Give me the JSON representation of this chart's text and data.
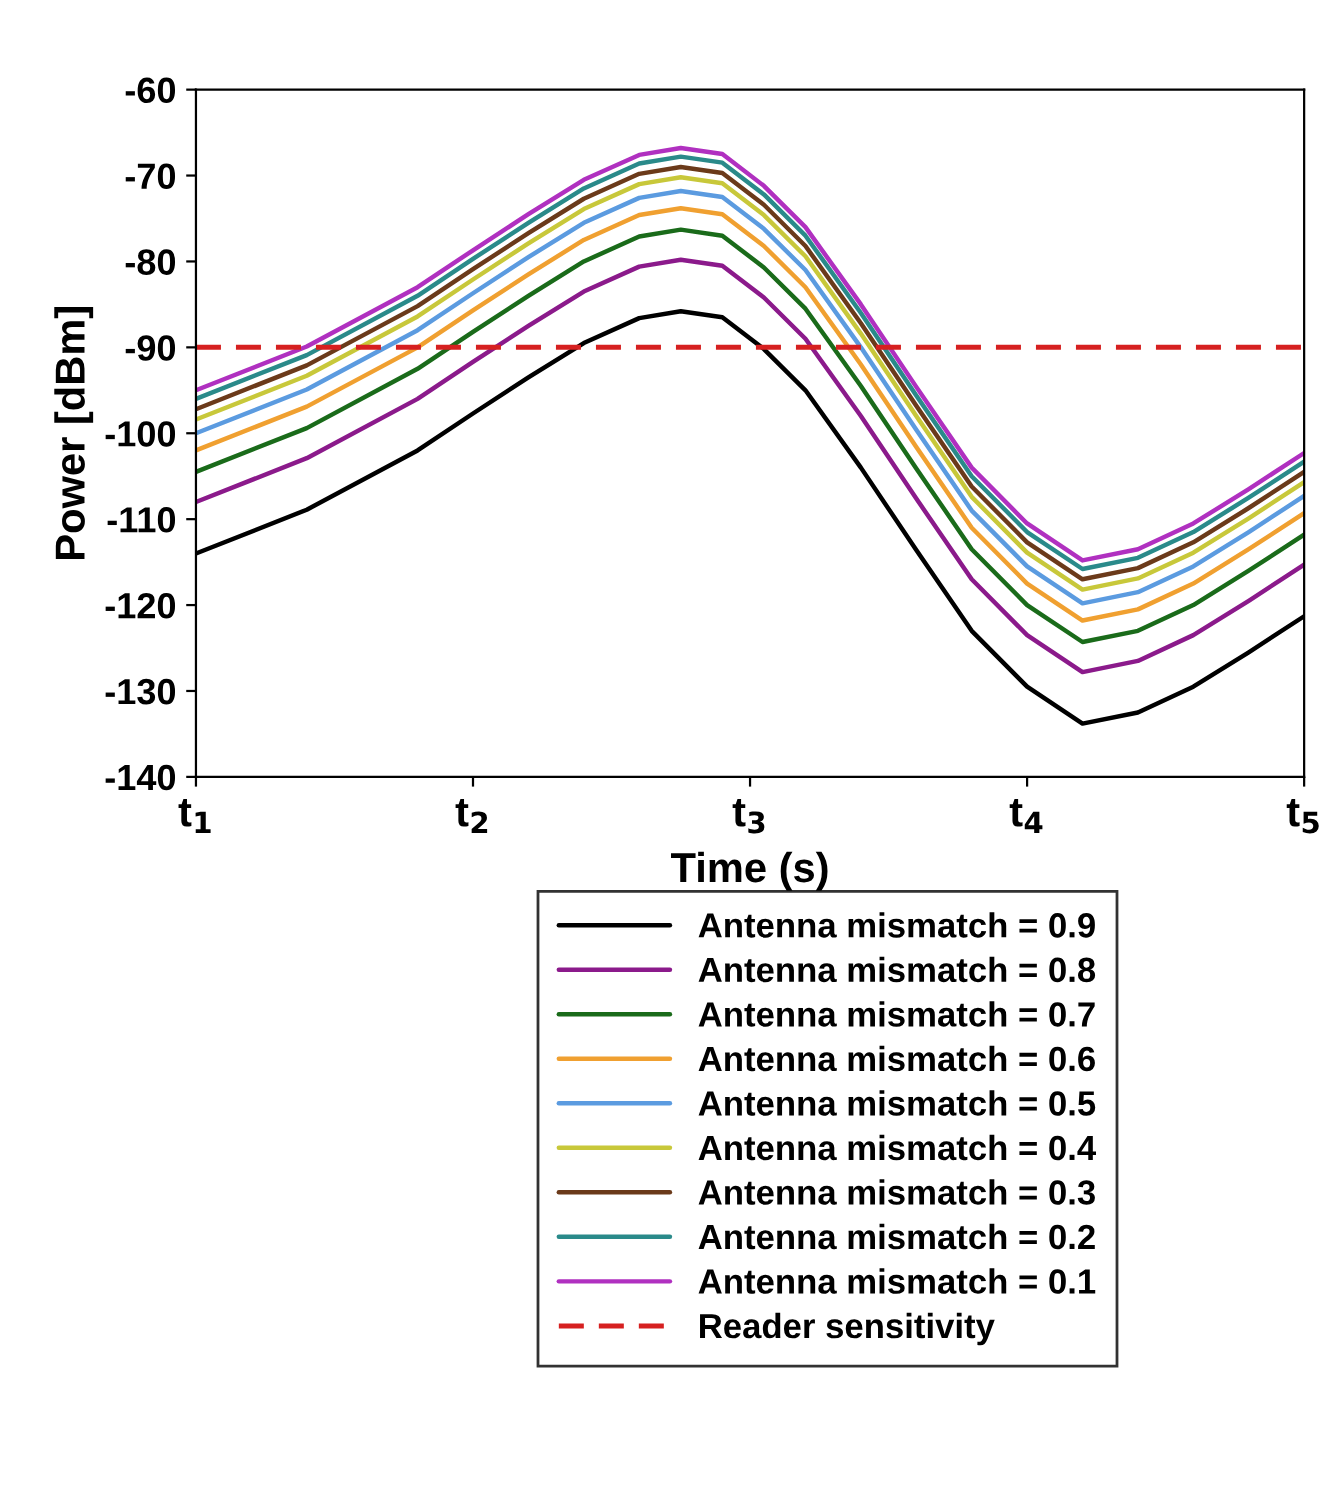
{
  "chart_data": {
    "type": "line",
    "xlabel": "Time (s)",
    "ylabel": "Power [dBm]",
    "x": [
      1,
      1.4,
      1.8,
      2.0,
      2.2,
      2.4,
      2.6,
      2.75,
      2.9,
      3.05,
      3.2,
      3.4,
      3.6,
      3.8,
      4.0,
      4.2,
      4.4,
      4.6,
      4.8,
      5.0
    ],
    "xlim": [
      1,
      5
    ],
    "xticks": [
      {
        "value": 1,
        "label": "t$_{1}$"
      },
      {
        "value": 2,
        "label": "t$_{2}$"
      },
      {
        "value": 3,
        "label": "t$_{3}$"
      },
      {
        "value": 4,
        "label": "t$_{4}$"
      },
      {
        "value": 5,
        "label": "t$_{5}$"
      }
    ],
    "ylim": [
      -140,
      -60
    ],
    "yticks": [
      -140,
      -130,
      -120,
      -110,
      -100,
      -90,
      -80,
      -70,
      -60
    ],
    "grid": false,
    "legend": "bottom",
    "marker": "none",
    "line_style": "solid",
    "series": [
      {
        "name": "Antenna mismatch = 0.9",
        "color": "#000000",
        "values": [
          -114,
          -108.9,
          -102,
          -97.7,
          -93.5,
          -89.5,
          -86.6,
          -85.8,
          -86.5,
          -90.2,
          -95,
          -104,
          -113.6,
          -123,
          -129.5,
          -133.8,
          -132.5,
          -129.5,
          -125.5,
          -121.3
        ]
      },
      {
        "name": "Antenna mismatch = 0.8",
        "color": "#8b1a8b",
        "values": [
          -108,
          -102.9,
          -96,
          -91.7,
          -87.5,
          -83.5,
          -80.6,
          -79.8,
          -80.5,
          -84.2,
          -89,
          -98,
          -107.6,
          -117,
          -123.5,
          -127.8,
          -126.5,
          -123.5,
          -119.5,
          -115.3
        ]
      },
      {
        "name": "Antenna mismatch = 0.7",
        "color": "#1a6b1a",
        "values": [
          -104.5,
          -99.4,
          -92.5,
          -88.2,
          -84,
          -80,
          -77.1,
          -76.3,
          -77,
          -80.7,
          -85.5,
          -94.5,
          -104.1,
          -113.5,
          -120,
          -124.3,
          -123,
          -120,
          -116,
          -111.8
        ]
      },
      {
        "name": "Antenna mismatch = 0.6",
        "color": "#f0a030",
        "values": [
          -102,
          -96.9,
          -90,
          -85.7,
          -81.5,
          -77.5,
          -74.6,
          -73.8,
          -74.5,
          -78.2,
          -83,
          -92,
          -101.6,
          -111,
          -117.5,
          -121.8,
          -120.5,
          -117.5,
          -113.5,
          -109.3
        ]
      },
      {
        "name": "Antenna mismatch = 0.5",
        "color": "#5b9be0",
        "values": [
          -100,
          -94.9,
          -88,
          -83.7,
          -79.5,
          -75.5,
          -72.6,
          -71.8,
          -72.5,
          -76.2,
          -81,
          -90,
          -99.6,
          -109,
          -115.5,
          -119.8,
          -118.5,
          -115.5,
          -111.5,
          -107.3
        ]
      },
      {
        "name": "Antenna mismatch = 0.4",
        "color": "#c8c83a",
        "values": [
          -98.4,
          -93.3,
          -86.4,
          -82.1,
          -77.9,
          -73.9,
          -71,
          -70.2,
          -70.9,
          -74.6,
          -79.4,
          -88.4,
          -98,
          -107.4,
          -113.9,
          -118.2,
          -116.9,
          -113.9,
          -109.9,
          -105.7
        ]
      },
      {
        "name": "Antenna mismatch = 0.3",
        "color": "#6b3a1a",
        "values": [
          -97.2,
          -92.1,
          -85.2,
          -80.9,
          -76.7,
          -72.7,
          -69.8,
          -69,
          -69.7,
          -73.4,
          -78.2,
          -87.2,
          -96.8,
          -106.2,
          -112.7,
          -117,
          -115.7,
          -112.7,
          -108.7,
          -104.5
        ]
      },
      {
        "name": "Antenna mismatch = 0.2",
        "color": "#2a8a8a",
        "values": [
          -96,
          -90.9,
          -84,
          -79.7,
          -75.5,
          -71.5,
          -68.6,
          -67.8,
          -68.5,
          -72.2,
          -77,
          -86,
          -95.6,
          -105,
          -111.5,
          -115.8,
          -114.5,
          -111.5,
          -107.5,
          -103.3
        ]
      },
      {
        "name": "Antenna mismatch = 0.1",
        "color": "#b030c0",
        "values": [
          -95,
          -89.9,
          -83,
          -78.7,
          -74.5,
          -70.5,
          -67.6,
          -66.8,
          -67.5,
          -71.2,
          -76,
          -85,
          -94.6,
          -104,
          -110.5,
          -114.8,
          -113.5,
          -110.5,
          -106.5,
          -102.3
        ]
      }
    ],
    "ref_lines": [
      {
        "axis": "y",
        "value": -90,
        "label": "Reader sensitivity",
        "color": "#d62020",
        "line_style": "dashed"
      }
    ]
  }
}
